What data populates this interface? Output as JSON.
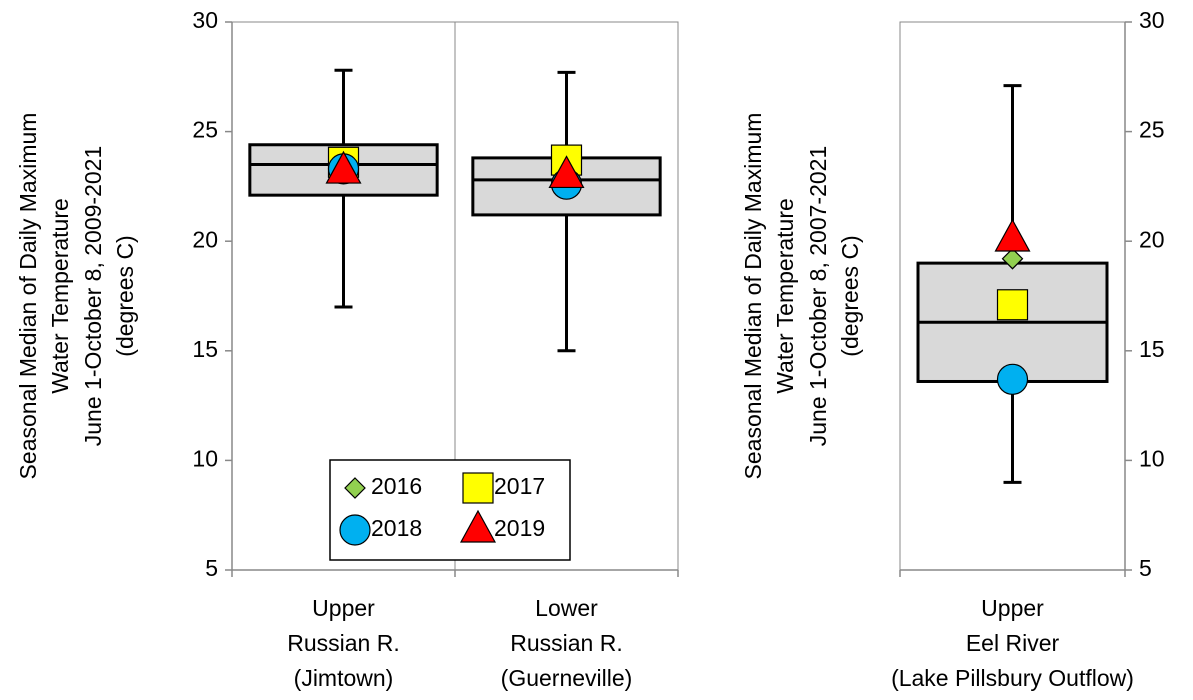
{
  "chart_data": [
    {
      "type": "box",
      "ylabel": [
        "Seasonal Median of Daily Maximum",
        "Water Temperature",
        "June 1-October 8, 2009-2021",
        "(degrees C)"
      ],
      "categories": [
        [
          "Upper",
          "Russian R.",
          "(Jimtown)"
        ],
        [
          "Lower",
          "Russian R.",
          "(Guerneville)"
        ]
      ],
      "boxes": [
        {
          "whislo": 17.0,
          "q1": 22.1,
          "med": 23.5,
          "q3": 24.4,
          "whishi": 27.8
        },
        {
          "whislo": 15.0,
          "q1": 21.2,
          "med": 22.8,
          "q3": 23.8,
          "whishi": 27.7
        }
      ],
      "box_color": "#d9d9d9",
      "series": [
        {
          "name": "2016",
          "marker": "diamond",
          "color": "#92d050",
          "values": [
            23.3,
            22.7
          ]
        },
        {
          "name": "2017",
          "marker": "square",
          "color": "#ffff00",
          "values": [
            23.6,
            23.7
          ]
        },
        {
          "name": "2018",
          "marker": "circle",
          "color": "#00b0f0",
          "values": [
            23.3,
            22.6
          ]
        },
        {
          "name": "2019",
          "marker": "triangle",
          "color": "#ff0000",
          "values": [
            23.2,
            23.0
          ]
        }
      ],
      "ylim": [
        5,
        30
      ],
      "yticks": [
        5,
        10,
        15,
        20,
        25,
        30
      ],
      "yaxis_side": "left",
      "legend": true
    },
    {
      "type": "box",
      "ylabel": [
        "Seasonal Median of Daily Maximum",
        "Water Temperature",
        "June 1-October 8, 2007-2021",
        "(degrees C)"
      ],
      "categories": [
        [
          "Upper",
          "Eel River",
          "(Lake Pillsbury Outflow)"
        ]
      ],
      "boxes": [
        {
          "whislo": 9.0,
          "q1": 13.6,
          "med": 16.3,
          "q3": 19.0,
          "whishi": 27.1
        }
      ],
      "box_color": "#d9d9d9",
      "series": [
        {
          "name": "2016",
          "marker": "diamond",
          "color": "#92d050",
          "values": [
            19.2
          ]
        },
        {
          "name": "2017",
          "marker": "square",
          "color": "#ffff00",
          "values": [
            17.1
          ]
        },
        {
          "name": "2018",
          "marker": "circle",
          "color": "#00b0f0",
          "values": [
            13.7
          ]
        },
        {
          "name": "2019",
          "marker": "triangle",
          "color": "#ff0000",
          "values": [
            20.1
          ]
        }
      ],
      "ylim": [
        5,
        30
      ],
      "yticks": [
        5,
        10,
        15,
        20,
        25,
        30
      ],
      "yaxis_side": "right",
      "legend": false
    }
  ]
}
